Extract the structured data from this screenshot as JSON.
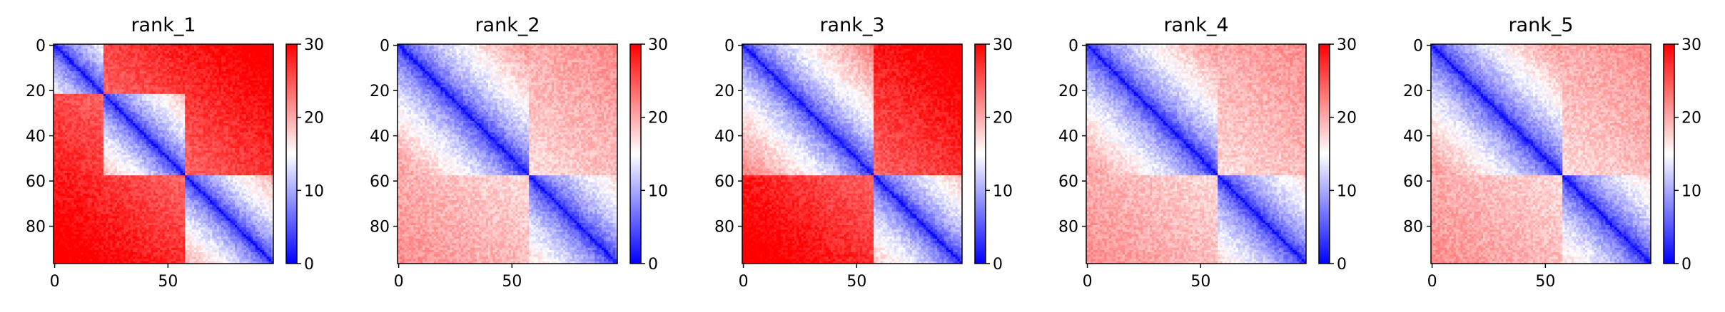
{
  "chart_data": [
    {
      "type": "heatmap",
      "title": "rank_1",
      "xticks": [
        "0",
        "50"
      ],
      "yticks": [
        "0",
        "20",
        "40",
        "60",
        "80"
      ],
      "colorbar_ticks": [
        "0",
        "10",
        "20",
        "30"
      ],
      "colorbar_range": [
        0,
        30
      ],
      "colormap": {
        "low": "#0000ff",
        "mid": "#ffffff",
        "high": "#ff0000"
      },
      "matrix_size": 97,
      "domain_boundaries": [
        0,
        22,
        58,
        97
      ],
      "off_diagonal_pairs": [],
      "intra_domain_scale": 9.5
    },
    {
      "type": "heatmap",
      "title": "rank_2",
      "xticks": [
        "0",
        "50"
      ],
      "yticks": [
        "0",
        "20",
        "40",
        "60",
        "80"
      ],
      "colorbar_ticks": [
        "0",
        "10",
        "20",
        "30"
      ],
      "colorbar_range": [
        0,
        30
      ],
      "colormap": {
        "low": "#0000ff",
        "mid": "#ffffff",
        "high": "#ff0000"
      },
      "matrix_size": 97,
      "domain_boundaries": [
        0,
        58,
        97
      ],
      "off_diagonal_pairs": [
        [
          0,
          1
        ]
      ],
      "intra_domain_scale": 8.5
    },
    {
      "type": "heatmap",
      "title": "rank_3",
      "xticks": [
        "0",
        "50"
      ],
      "yticks": [
        "0",
        "20",
        "40",
        "60",
        "80"
      ],
      "colorbar_ticks": [
        "0",
        "10",
        "20",
        "30"
      ],
      "colorbar_range": [
        0,
        30
      ],
      "colormap": {
        "low": "#0000ff",
        "mid": "#ffffff",
        "high": "#ff0000"
      },
      "matrix_size": 97,
      "domain_boundaries": [
        0,
        58,
        97
      ],
      "off_diagonal_pairs": [],
      "intra_domain_scale": 9.0
    },
    {
      "type": "heatmap",
      "title": "rank_4",
      "xticks": [
        "0",
        "50"
      ],
      "yticks": [
        "0",
        "20",
        "40",
        "60",
        "80"
      ],
      "colorbar_ticks": [
        "0",
        "10",
        "20",
        "30"
      ],
      "colorbar_range": [
        0,
        30
      ],
      "colormap": {
        "low": "#0000ff",
        "mid": "#ffffff",
        "high": "#ff0000"
      },
      "matrix_size": 97,
      "domain_boundaries": [
        0,
        58,
        97
      ],
      "off_diagonal_pairs": [
        [
          0,
          1
        ]
      ],
      "intra_domain_scale": 8.5
    },
    {
      "type": "heatmap",
      "title": "rank_5",
      "xticks": [
        "0",
        "50"
      ],
      "yticks": [
        "0",
        "20",
        "40",
        "60",
        "80"
      ],
      "colorbar_ticks": [
        "0",
        "10",
        "20",
        "30"
      ],
      "colorbar_range": [
        0,
        30
      ],
      "colormap": {
        "low": "#0000ff",
        "mid": "#ffffff",
        "high": "#ff0000"
      },
      "matrix_size": 97,
      "domain_boundaries": [
        0,
        58,
        97
      ],
      "off_diagonal_pairs": [
        [
          0,
          1
        ]
      ],
      "intra_domain_scale": 8.5
    }
  ]
}
